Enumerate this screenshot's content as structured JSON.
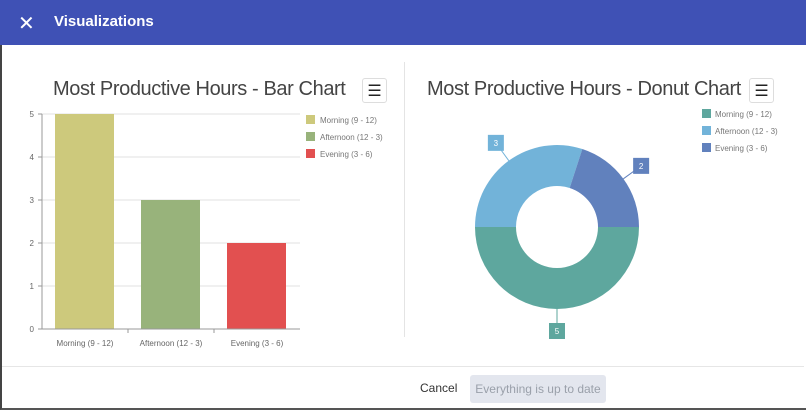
{
  "header": {
    "title": "Visualizations",
    "close_icon": "close-icon"
  },
  "footer": {
    "cancel_label": "Cancel",
    "status_button_label": "Everything is up to date"
  },
  "chart_data": [
    {
      "type": "bar",
      "title": "Most Productive Hours - Bar Chart",
      "categories": [
        "Morning (9 - 12)",
        "Afternoon (12 - 3)",
        "Evening (3 - 6)"
      ],
      "values": [
        5,
        3,
        2
      ],
      "colors": [
        "#cdc97c",
        "#98b37b",
        "#e25050"
      ],
      "ylim": [
        0,
        5
      ],
      "yticks": [
        "0",
        "1",
        "2",
        "3",
        "4",
        "5"
      ],
      "grid": true,
      "legend": "right",
      "menu_icon": "hamburger-icon"
    },
    {
      "type": "pie",
      "donut": true,
      "title": "Most Productive Hours - Donut Chart",
      "categories": [
        "Morning (9 - 12)",
        "Afternoon (12 - 3)",
        "Evening (3 - 6)"
      ],
      "values": [
        5,
        3,
        2
      ],
      "data_labels": [
        "5",
        "3",
        "2"
      ],
      "colors": [
        "#5ea79e",
        "#72b3d9",
        "#6181bd"
      ],
      "legend": "top-right",
      "menu_icon": "hamburger-icon"
    }
  ]
}
